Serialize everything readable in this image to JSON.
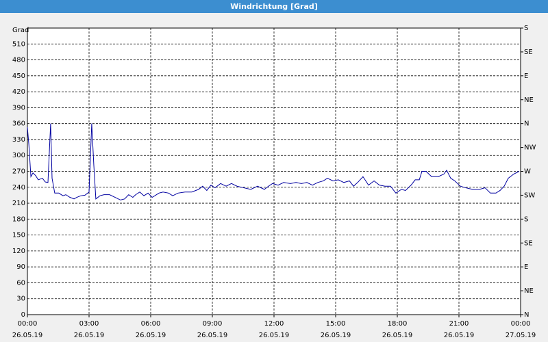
{
  "chart_data": {
    "type": "line",
    "title": "Windrichtung [Grad]",
    "y_label": "Grad",
    "xlim": [
      0,
      24
    ],
    "xticks": [
      {
        "value": 0,
        "label": "00:00"
      },
      {
        "value": 3,
        "label": "03:00"
      },
      {
        "value": 6,
        "label": "06:00"
      },
      {
        "value": 9,
        "label": "09:00"
      },
      {
        "value": 12,
        "label": "12:00"
      },
      {
        "value": 15,
        "label": "15:00"
      },
      {
        "value": 18,
        "label": "18:00"
      },
      {
        "value": 21,
        "label": "21:00"
      },
      {
        "value": 24,
        "label": "00:00"
      }
    ],
    "xtick_dates": [
      "26.05.19",
      "26.05.19",
      "26.05.19",
      "26.05.19",
      "26.05.19",
      "26.05.19",
      "26.05.19",
      "26.05.19",
      "27.05.19"
    ],
    "ylim": [
      0,
      540
    ],
    "yticks": [
      0,
      30,
      60,
      90,
      120,
      150,
      180,
      210,
      240,
      270,
      300,
      330,
      360,
      390,
      420,
      450,
      480,
      510
    ],
    "y2lim": [
      0,
      540
    ],
    "y2ticks": [
      {
        "value": 0,
        "label": "N"
      },
      {
        "value": 45,
        "label": "NE"
      },
      {
        "value": 90,
        "label": "E"
      },
      {
        "value": 135,
        "label": "SE"
      },
      {
        "value": 180,
        "label": "S"
      },
      {
        "value": 225,
        "label": "SW"
      },
      {
        "value": 270,
        "label": "W"
      },
      {
        "value": 315,
        "label": "NW"
      },
      {
        "value": 360,
        "label": "N"
      },
      {
        "value": 405,
        "label": "NE"
      },
      {
        "value": 450,
        "label": "E"
      },
      {
        "value": 495,
        "label": "SE"
      },
      {
        "value": 540,
        "label": "S"
      }
    ],
    "grid": true,
    "color": "#0000a0",
    "x": [
      0,
      0.07,
      0.17,
      0.27,
      0.4,
      0.53,
      0.73,
      0.87,
      1.0,
      1.13,
      1.2,
      1.33,
      1.53,
      1.73,
      1.87,
      2.07,
      2.27,
      2.4,
      2.6,
      2.8,
      3.0,
      3.13,
      3.23,
      3.33,
      3.53,
      3.73,
      4.0,
      4.27,
      4.53,
      4.73,
      4.93,
      5.13,
      5.27,
      5.47,
      5.67,
      5.87,
      6.07,
      6.2,
      6.4,
      6.6,
      6.87,
      7.07,
      7.33,
      7.67,
      8.0,
      8.33,
      8.53,
      8.73,
      8.93,
      9.13,
      9.4,
      9.67,
      9.93,
      10.2,
      10.53,
      10.87,
      11.2,
      11.53,
      11.73,
      11.93,
      12.2,
      12.47,
      12.8,
      13.07,
      13.33,
      13.6,
      13.87,
      14.13,
      14.4,
      14.6,
      14.87,
      15.13,
      15.4,
      15.67,
      15.87,
      16.07,
      16.33,
      16.6,
      16.87,
      17.13,
      17.4,
      17.67,
      17.93,
      18.2,
      18.4,
      18.67,
      18.87,
      19.07,
      19.2,
      19.4,
      19.67,
      20.0,
      20.27,
      20.4,
      20.6,
      20.8,
      21.07,
      21.33,
      21.67,
      22.0,
      22.27,
      22.53,
      22.8,
      23.0,
      23.2,
      23.4,
      23.67,
      23.93
    ],
    "values": [
      353,
      321,
      260,
      267,
      262,
      254,
      257,
      250,
      249,
      360,
      257,
      229,
      229,
      224,
      226,
      221,
      218,
      221,
      224,
      225,
      231,
      360,
      283,
      218,
      224,
      226,
      226,
      221,
      216,
      218,
      226,
      221,
      226,
      231,
      224,
      229,
      221,
      224,
      229,
      231,
      229,
      224,
      229,
      231,
      231,
      236,
      242,
      234,
      244,
      239,
      247,
      242,
      247,
      242,
      239,
      236,
      242,
      236,
      242,
      247,
      244,
      249,
      247,
      249,
      247,
      249,
      244,
      249,
      252,
      257,
      252,
      254,
      249,
      252,
      242,
      249,
      260,
      244,
      252,
      244,
      242,
      242,
      229,
      236,
      234,
      244,
      254,
      254,
      270,
      270,
      260,
      260,
      265,
      272,
      257,
      252,
      242,
      239,
      236,
      236,
      239,
      229,
      229,
      234,
      242,
      257,
      265,
      270
    ]
  }
}
